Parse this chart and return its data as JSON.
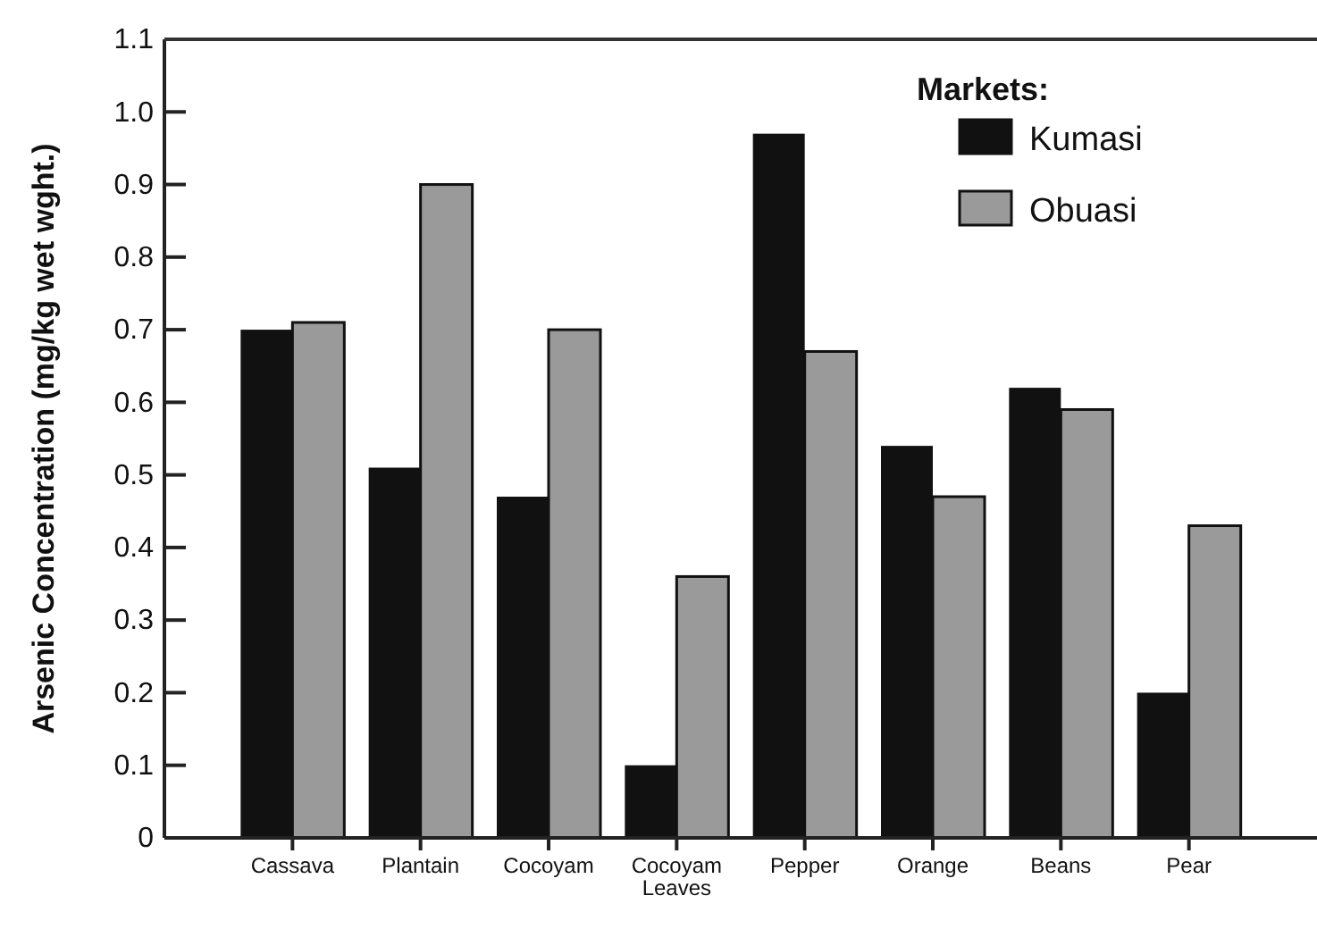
{
  "chart_data": {
    "type": "bar",
    "ylabel": "Arsenic Concentration (mg/kg wet wght.)",
    "legend_title": "Markets:",
    "legend": "top right",
    "categories": [
      "Cassava",
      "Plantain",
      "Cocoyam",
      "Cocoyam Leaves",
      "Pepper",
      "Orange",
      "Beans",
      "Pear"
    ],
    "series": [
      {
        "name": "Kumasi",
        "color": "#111111",
        "values": [
          0.7,
          0.51,
          0.47,
          0.1,
          0.97,
          0.54,
          0.62,
          0.2
        ]
      },
      {
        "name": "Obuasi",
        "color": "#9a9a9a",
        "values": [
          0.71,
          0.9,
          0.7,
          0.36,
          0.67,
          0.47,
          0.59,
          0.43
        ]
      }
    ],
    "ylim": [
      0,
      1.1
    ],
    "yticks": [
      {
        "value": 0,
        "label": "0"
      },
      0.1,
      0.2,
      0.3,
      0.4,
      0.5,
      0.6,
      0.7,
      0.8,
      0.9,
      {
        "value": 1,
        "label": "1.0"
      },
      1.1
    ],
    "grid": false
  }
}
